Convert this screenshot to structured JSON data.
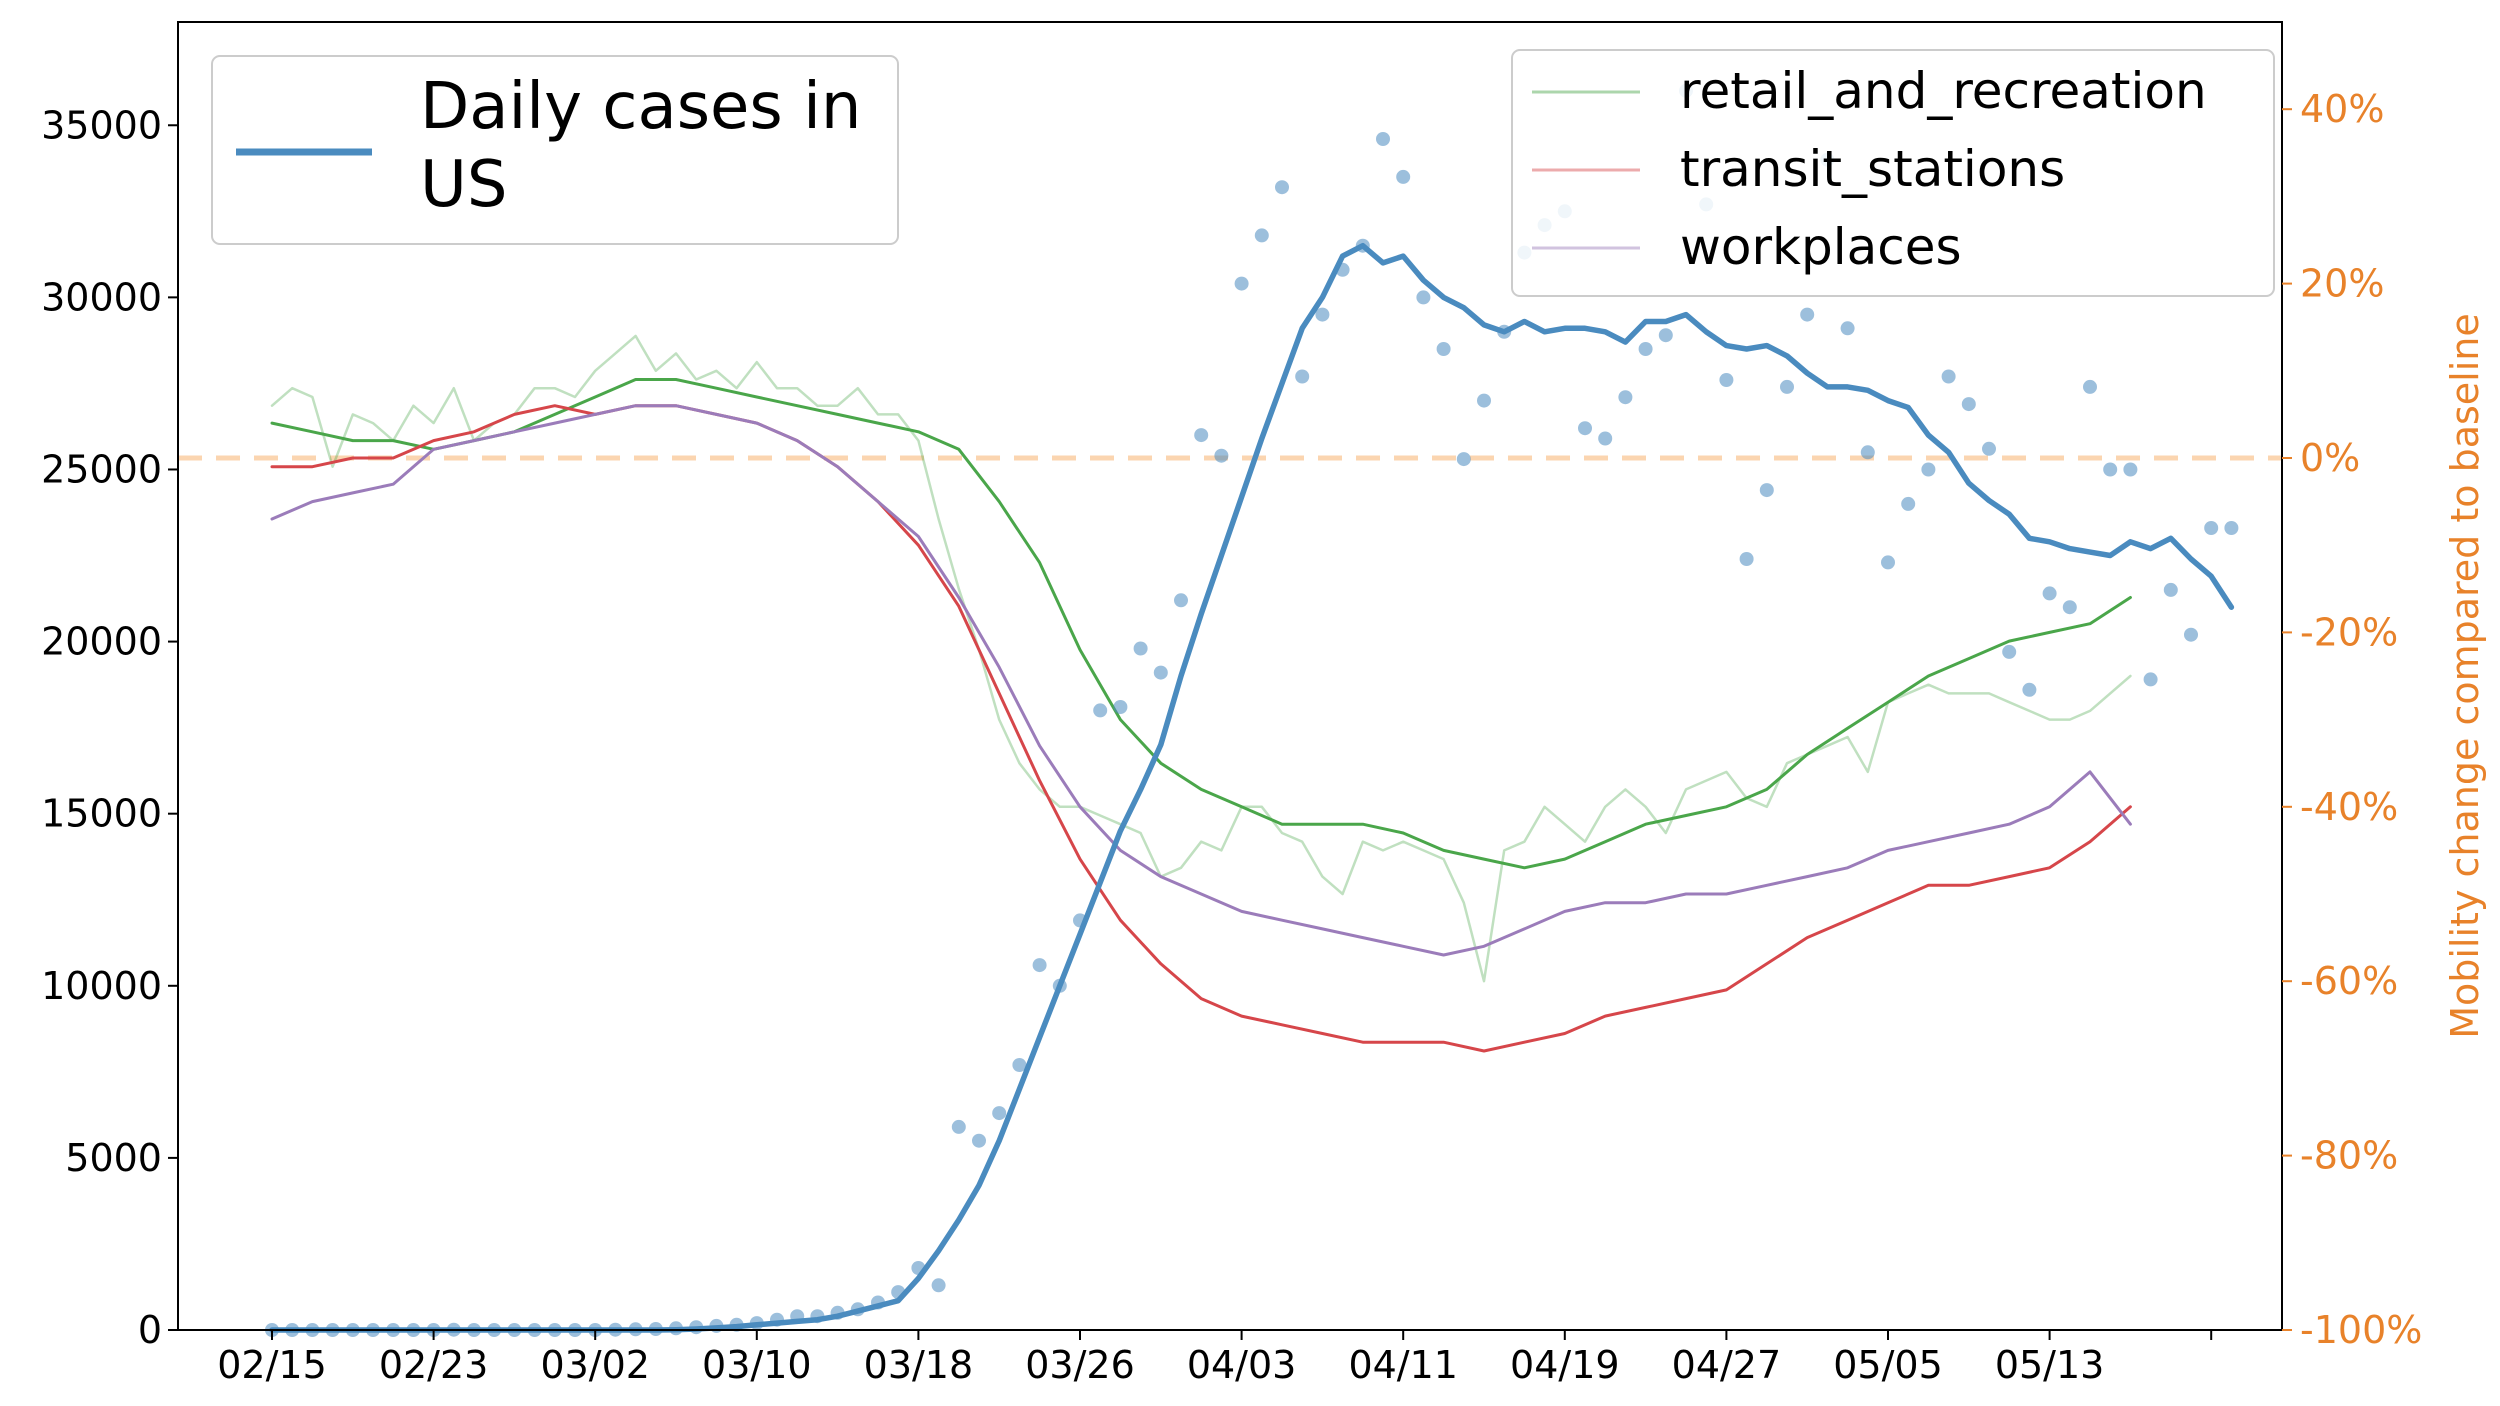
{
  "chart_data": {
    "type": "line",
    "title": "",
    "xlabel": "",
    "ylabel": "",
    "y2label": "Mobility change compared to baseline",
    "start_date": "02/15",
    "x_tick_labels": [
      "02/15",
      "02/23",
      "03/02",
      "03/10",
      "03/18",
      "03/26",
      "04/03",
      "04/11",
      "04/19",
      "04/27",
      "05/05",
      "05/13"
    ],
    "y_tick_labels": [
      "0",
      "5000",
      "10000",
      "15000",
      "20000",
      "25000",
      "30000",
      "35000"
    ],
    "y2_tick_labels": [
      "-100%",
      "-80%",
      "-60%",
      "-40%",
      "-20%",
      "0%",
      "20%",
      "40%"
    ],
    "ylim": [
      0,
      38000
    ],
    "y2lim": [
      -100,
      50
    ],
    "baseline_y2": 0,
    "colors": {
      "cases": "#4a8bbf",
      "retail": "#4aa64a",
      "transit": "#d6464a",
      "workplaces": "#9b7cba",
      "right_axis": "#e8822a",
      "baseline": "#fbd5b0"
    },
    "legend_left": {
      "label_line1": "Daily cases in",
      "label_line2": "US",
      "placement": "top-left"
    },
    "legend_right": {
      "entries": [
        "retail_and_recreation",
        "transit_stations",
        "workplaces"
      ],
      "placement": "top-right"
    },
    "series": [
      {
        "name": "Daily cases in US",
        "axis": "left",
        "kind": "smoothed",
        "x": [
          0,
          1,
          2,
          3,
          4,
          5,
          6,
          7,
          8,
          9,
          10,
          11,
          12,
          13,
          14,
          15,
          16,
          17,
          18,
          19,
          20,
          21,
          22,
          23,
          24,
          25,
          26,
          27,
          28,
          29,
          30,
          31,
          32,
          33,
          34,
          35,
          36,
          37,
          38,
          39,
          40,
          41,
          42,
          43,
          44,
          45,
          46,
          47,
          48,
          49,
          50,
          51,
          52,
          53,
          54,
          55,
          56,
          57,
          58,
          59,
          60,
          61,
          62,
          63,
          64,
          65,
          66,
          67,
          68,
          69,
          70,
          71,
          72,
          73,
          74,
          75,
          76,
          77,
          78,
          79,
          80,
          81,
          82,
          83,
          84,
          85,
          86,
          87,
          88,
          89,
          90,
          91,
          92,
          93,
          94,
          95,
          96,
          97
        ],
        "values": [
          0,
          0,
          0,
          0,
          0,
          0,
          0,
          0,
          0,
          0,
          0,
          0,
          0,
          0,
          0,
          0,
          0,
          0,
          0,
          0,
          10,
          30,
          60,
          100,
          150,
          200,
          250,
          300,
          400,
          550,
          700,
          850,
          1500,
          2300,
          3200,
          4200,
          5500,
          7000,
          8500,
          10000,
          11500,
          13000,
          14500,
          15700,
          17000,
          19000,
          20800,
          22500,
          24200,
          25900,
          27500,
          29100,
          30000,
          31200,
          31500,
          31000,
          31200,
          30500,
          30000,
          29700,
          29200,
          29000,
          29300,
          29000,
          29100,
          29100,
          29000,
          28700,
          29300,
          29300,
          29500,
          29000,
          28600,
          28500,
          28600,
          28300,
          27800,
          27400,
          27400,
          27300,
          27000,
          26800,
          26000,
          25500,
          24600,
          24100,
          23700,
          23000,
          22900,
          22700,
          22600,
          22500,
          22900,
          22700,
          23000,
          22400,
          21900,
          21000
        ]
      },
      {
        "name": "Daily cases in US (points)",
        "axis": "left",
        "kind": "scatter",
        "x": [
          0,
          1,
          2,
          3,
          4,
          5,
          6,
          7,
          8,
          9,
          10,
          11,
          12,
          13,
          14,
          15,
          16,
          17,
          18,
          19,
          20,
          21,
          22,
          23,
          24,
          25,
          26,
          27,
          28,
          29,
          30,
          31,
          32,
          33,
          34,
          35,
          36,
          37,
          38,
          39,
          40,
          41,
          42,
          43,
          44,
          45,
          46,
          47,
          48,
          49,
          50,
          51,
          52,
          53,
          54,
          55,
          56,
          57,
          58,
          59,
          60,
          61,
          62,
          63,
          64,
          65,
          66,
          67,
          68,
          69,
          70,
          71,
          72,
          73,
          74,
          75,
          76,
          77,
          78,
          79,
          80,
          81,
          82,
          83,
          84,
          85,
          86,
          87,
          88,
          89,
          90,
          91,
          92,
          93,
          94,
          95,
          96,
          97
        ],
        "values": [
          0,
          0,
          0,
          0,
          0,
          0,
          0,
          0,
          0,
          10,
          0,
          0,
          0,
          0,
          0,
          0,
          0,
          10,
          20,
          30,
          50,
          80,
          120,
          150,
          200,
          300,
          400,
          400,
          500,
          600,
          800,
          1100,
          1800,
          1300,
          5900,
          5500,
          6300,
          7700,
          10600,
          10000,
          11900,
          18000,
          18100,
          19800,
          19100,
          21200,
          26000,
          25400,
          30400,
          31800,
          33200,
          27700,
          29500,
          30800,
          31500,
          34600,
          33500,
          30000,
          28500,
          25300,
          27000,
          29000,
          31300,
          32100,
          32500,
          26200,
          25900,
          27100,
          28500,
          28900,
          36000,
          32700,
          27600,
          22400,
          24400,
          27400,
          29500,
          34000,
          29100,
          25500,
          22300,
          24000,
          25000,
          27700,
          26900,
          25600,
          19700,
          18600,
          21400,
          21000,
          27400,
          25000,
          25000,
          18900,
          21500,
          20200,
          23300,
          23300
        ]
      },
      {
        "name": "retail_and_recreation",
        "axis": "right",
        "kind": "smoothed",
        "x": [
          0,
          2,
          4,
          6,
          8,
          10,
          12,
          14,
          16,
          18,
          20,
          22,
          24,
          26,
          28,
          30,
          32,
          34,
          36,
          38,
          40,
          42,
          44,
          46,
          48,
          50,
          52,
          54,
          56,
          58,
          60,
          62,
          64,
          66,
          68,
          70,
          72,
          74,
          76,
          78,
          80,
          82,
          84,
          86,
          88,
          90,
          92
        ],
        "values": [
          4,
          3,
          2,
          2,
          1,
          2,
          3,
          5,
          7,
          9,
          9,
          8,
          7,
          6,
          5,
          4,
          3,
          1,
          -5,
          -12,
          -22,
          -30,
          -35,
          -38,
          -40,
          -42,
          -42,
          -42,
          -43,
          -45,
          -46,
          -47,
          -46,
          -44,
          -42,
          -41,
          -40,
          -38,
          -34,
          -31,
          -28,
          -25,
          -23,
          -21,
          -20,
          -19,
          -16
        ]
      },
      {
        "name": "retail_and_recreation (daily)",
        "axis": "right",
        "kind": "daily",
        "x": [
          0,
          1,
          2,
          3,
          4,
          5,
          6,
          7,
          8,
          9,
          10,
          11,
          12,
          13,
          14,
          15,
          16,
          17,
          18,
          19,
          20,
          21,
          22,
          23,
          24,
          25,
          26,
          27,
          28,
          29,
          30,
          31,
          32,
          33,
          34,
          35,
          36,
          37,
          38,
          39,
          40,
          41,
          42,
          43,
          44,
          45,
          46,
          47,
          48,
          49,
          50,
          51,
          52,
          53,
          54,
          55,
          56,
          57,
          58,
          59,
          60,
          61,
          62,
          63,
          64,
          65,
          66,
          67,
          68,
          69,
          70,
          71,
          72,
          73,
          74,
          75,
          76,
          77,
          78,
          79,
          80,
          81,
          82,
          83,
          84,
          85,
          86,
          87,
          88,
          89,
          90,
          91,
          92
        ],
        "values": [
          6,
          8,
          7,
          -1,
          5,
          4,
          2,
          6,
          4,
          8,
          2,
          4,
          5,
          8,
          8,
          7,
          10,
          12,
          14,
          10,
          12,
          9,
          10,
          8,
          11,
          8,
          8,
          6,
          6,
          8,
          5,
          5,
          2,
          -7,
          -15,
          -22,
          -30,
          -35,
          -38,
          -40,
          -40,
          -41,
          -42,
          -43,
          -48,
          -47,
          -44,
          -45,
          -40,
          -40,
          -43,
          -44,
          -48,
          -50,
          -44,
          -45,
          -44,
          -45,
          -46,
          -51,
          -60,
          -45,
          -44,
          -40,
          -42,
          -44,
          -40,
          -38,
          -40,
          -43,
          -38,
          -37,
          -36,
          -39,
          -40,
          -35,
          -34,
          -33,
          -32,
          -36,
          -28,
          -27,
          -26,
          -27,
          -27,
          -27,
          -28,
          -29,
          -30,
          -30,
          -29,
          -27,
          -25
        ]
      },
      {
        "name": "transit_stations",
        "axis": "right",
        "kind": "smoothed",
        "x": [
          0,
          2,
          4,
          6,
          8,
          10,
          12,
          14,
          16,
          18,
          20,
          22,
          24,
          26,
          28,
          30,
          32,
          34,
          36,
          38,
          40,
          42,
          44,
          46,
          48,
          50,
          52,
          54,
          56,
          58,
          60,
          62,
          64,
          66,
          68,
          70,
          72,
          74,
          76,
          78,
          80,
          82,
          84,
          86,
          88,
          90,
          92
        ],
        "values": [
          -1,
          -1,
          0,
          0,
          2,
          3,
          5,
          6,
          5,
          6,
          6,
          5,
          4,
          2,
          -1,
          -5,
          -10,
          -17,
          -27,
          -37,
          -46,
          -53,
          -58,
          -62,
          -64,
          -65,
          -66,
          -67,
          -67,
          -67,
          -68,
          -67,
          -66,
          -64,
          -63,
          -62,
          -61,
          -58,
          -55,
          -53,
          -51,
          -49,
          -49,
          -48,
          -47,
          -44,
          -40
        ]
      },
      {
        "name": "workplaces",
        "axis": "right",
        "kind": "smoothed",
        "x": [
          0,
          2,
          4,
          6,
          8,
          10,
          12,
          14,
          16,
          18,
          20,
          22,
          24,
          26,
          28,
          30,
          32,
          34,
          36,
          38,
          40,
          42,
          44,
          46,
          48,
          50,
          52,
          54,
          56,
          58,
          60,
          62,
          64,
          66,
          68,
          70,
          72,
          74,
          76,
          78,
          80,
          82,
          84,
          86,
          88,
          90,
          92
        ],
        "values": [
          -7,
          -5,
          -4,
          -3,
          1,
          2,
          3,
          4,
          5,
          6,
          6,
          5,
          4,
          2,
          -1,
          -5,
          -9,
          -16,
          -24,
          -33,
          -40,
          -45,
          -48,
          -50,
          -52,
          -53,
          -54,
          -55,
          -56,
          -57,
          -56,
          -54,
          -52,
          -51,
          -51,
          -50,
          -50,
          -49,
          -48,
          -47,
          -45,
          -44,
          -43,
          -42,
          -40,
          -36,
          -42
        ]
      }
    ]
  }
}
